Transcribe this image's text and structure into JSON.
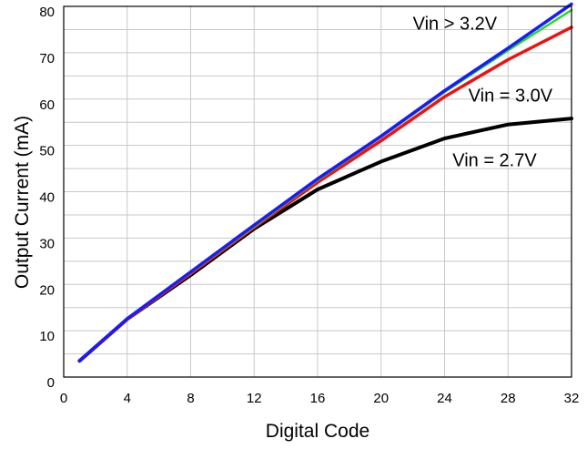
{
  "chart_data": {
    "type": "line",
    "title": "",
    "xlabel": "Digital Code",
    "ylabel": "Output Current (mA)",
    "xlim": [
      0,
      32
    ],
    "ylim": [
      0,
      80
    ],
    "grid": true,
    "x_ticks": [
      0,
      4,
      8,
      12,
      16,
      20,
      24,
      28,
      32
    ],
    "y_ticks": [
      0,
      10,
      20,
      30,
      40,
      50,
      60,
      70,
      80
    ],
    "series": [
      {
        "color": "#000000",
        "stroke_width": 4,
        "x": [
          1,
          4,
          8,
          12,
          16,
          20,
          24,
          28,
          32
        ],
        "y": [
          3.5,
          12.5,
          22,
          32,
          40.5,
          46.5,
          51.5,
          54.5,
          55.8
        ]
      },
      {
        "color": "#ee1111",
        "stroke_width": 3.5,
        "x": [
          1,
          4,
          8,
          12,
          16,
          20,
          24,
          28,
          32
        ],
        "y": [
          3.5,
          12.5,
          22.3,
          32.3,
          42,
          51,
          60.5,
          68.5,
          75.5
        ]
      },
      {
        "color": "#22dd22",
        "stroke_width": 2.5,
        "x": [
          1,
          4,
          8,
          12,
          16,
          20,
          24,
          28,
          32
        ],
        "y": [
          3.5,
          12.5,
          22.5,
          32.5,
          42.5,
          51.8,
          61.5,
          70.5,
          79.2
        ]
      },
      {
        "color": "#1a1aff",
        "stroke_width": 3.5,
        "x": [
          1,
          4,
          8,
          12,
          16,
          20,
          24,
          28,
          32
        ],
        "y": [
          3.5,
          12.6,
          22.7,
          32.8,
          42.8,
          52,
          61.8,
          71,
          80.5
        ]
      }
    ],
    "annotations": [
      {
        "text": "Vin > 3.2V",
        "x": 22,
        "y": 75
      },
      {
        "text": "Vin = 3.0V",
        "x": 25.5,
        "y": 59.5
      },
      {
        "text": "Vin = 2.7V",
        "x": 24.5,
        "y": 45.5
      }
    ]
  }
}
